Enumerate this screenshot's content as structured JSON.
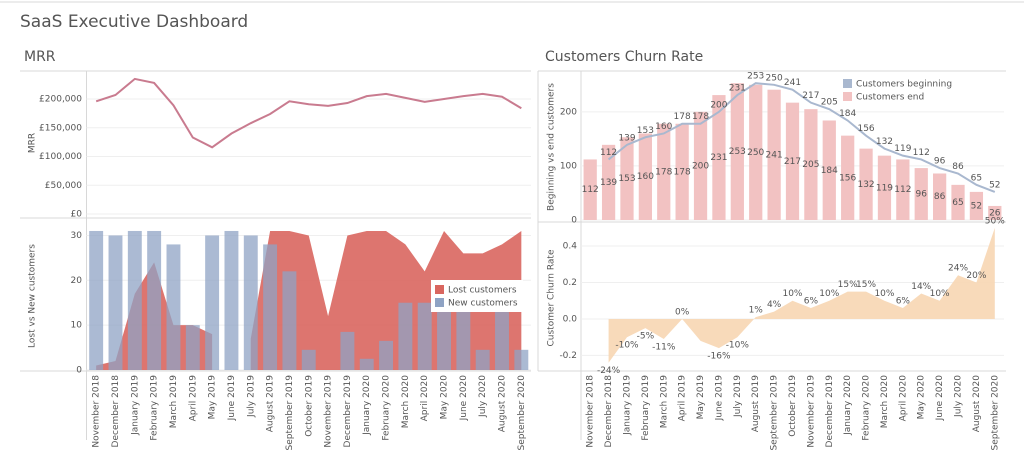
{
  "title": "SaaS Executive Dashboard",
  "chart_data": [
    {
      "type": "line",
      "title": "MRR",
      "y_label": "MRR",
      "color": "#c97b8f",
      "values": [
        196000,
        207000,
        235000,
        228000,
        189000,
        133000,
        116000,
        140000,
        158000,
        174000,
        196000,
        191000,
        188000,
        193000,
        205000,
        209000,
        202000,
        195000,
        200000,
        205000,
        209000,
        204000,
        184000
      ],
      "ylim": [
        0,
        247000
      ],
      "yticks": [
        {
          "value": 0,
          "label": "£0"
        },
        {
          "value": 50000,
          "label": "£50,000"
        },
        {
          "value": 100000,
          "label": "£100,000"
        },
        {
          "value": 150000,
          "label": "£150,000"
        },
        {
          "value": 200000,
          "label": "£200,000"
        }
      ],
      "grid": true
    },
    {
      "type": "combo",
      "y_label": "Lost vs New customers",
      "categories": [
        "November 2018",
        "December 2018",
        "January 2019",
        "February 2019",
        "March 2019",
        "April 2019",
        "May 2019",
        "June 2019",
        "July 2019",
        "August 2019",
        "September 2019",
        "October 2019",
        "November 2019",
        "December 2019",
        "January 2020",
        "February 2020",
        "March 2020",
        "April 2020",
        "May 2020",
        "June 2020",
        "July 2020",
        "August 2020",
        "September 2020"
      ],
      "series": [
        {
          "name": "Lost customers",
          "kind": "area",
          "color": "#d9665f",
          "values": [
            1,
            2,
            17,
            24,
            10,
            10,
            8,
            null,
            7,
            31,
            31,
            30,
            12,
            30,
            31,
            31,
            28,
            22,
            31,
            26,
            26,
            28,
            31
          ]
        },
        {
          "name": "New customers",
          "kind": "bar",
          "color": "#8fa3c4",
          "values": [
            31,
            30,
            31,
            31,
            28,
            10,
            30,
            31,
            30,
            28,
            22,
            4.5,
            0,
            8.5,
            2.5,
            6.5,
            15,
            15,
            15,
            16,
            4.5,
            15,
            4.5
          ]
        }
      ],
      "ylim": [
        0,
        33
      ],
      "yticks": [
        0,
        10,
        20,
        30
      ],
      "grid": true,
      "legend": "center right"
    },
    {
      "type": "combo",
      "title": "Customers Churn Rate",
      "y_label": "Beginning vs end customers",
      "series": [
        {
          "name": "Customers beginning",
          "kind": "line",
          "color": "#a9b8cf",
          "label_color": "#333333",
          "values": [
            null,
            112,
            139,
            153,
            160,
            178,
            178,
            200,
            231,
            253,
            250,
            241,
            217,
            205,
            184,
            156,
            132,
            119,
            112,
            96,
            86,
            65,
            52
          ]
        },
        {
          "name": "Customers end",
          "kind": "bar",
          "color": "#f2c2c2",
          "label_color": "#d9534f",
          "values": [
            112,
            139,
            153,
            160,
            178,
            178,
            200,
            231,
            253,
            250,
            241,
            217,
            205,
            184,
            156,
            132,
            119,
            112,
            96,
            86,
            65,
            52,
            26
          ]
        }
      ],
      "ylim": [
        0,
        270
      ],
      "yticks": [
        0,
        100,
        200
      ],
      "grid": true,
      "legend": "upper right"
    },
    {
      "type": "area",
      "y_label": "Customer Churn Rate",
      "color": "#f7d6b3",
      "label_color": "#333333",
      "categories": [
        "November 2018",
        "December 2018",
        "January 2019",
        "February 2019",
        "March 2019",
        "April 2019",
        "May 2019",
        "June 2019",
        "July 2019",
        "August 2019",
        "September 2019",
        "October 2019",
        "November 2019",
        "December 2019",
        "January 2020",
        "February 2020",
        "March 2020",
        "April 2020",
        "May 2020",
        "June 2020",
        "July 2020",
        "August 2020",
        "September 2020"
      ],
      "values": [
        null,
        -0.24,
        -0.1,
        -0.05,
        -0.11,
        0,
        -0.12,
        -0.16,
        -0.1,
        0.01,
        0.04,
        0.1,
        0.06,
        0.1,
        0.15,
        0.15,
        0.1,
        0.06,
        0.14,
        0.1,
        0.24,
        0.2,
        0.5
      ],
      "value_labels": [
        null,
        "-24%",
        "-10%",
        "-5%",
        "-11%",
        "0%",
        null,
        "-16%",
        "-10%",
        "1%",
        "4%",
        "10%",
        "6%",
        "10%",
        "15%",
        "15%",
        "10%",
        "6%",
        "14%",
        "10%",
        "24%",
        "20%",
        "50%"
      ],
      "ylim": [
        -0.28,
        0.51
      ],
      "yticks": [
        -0.2,
        {
          "value": 0,
          "label": "0.0"
        },
        0.2,
        0.4
      ],
      "grid": true
    }
  ]
}
